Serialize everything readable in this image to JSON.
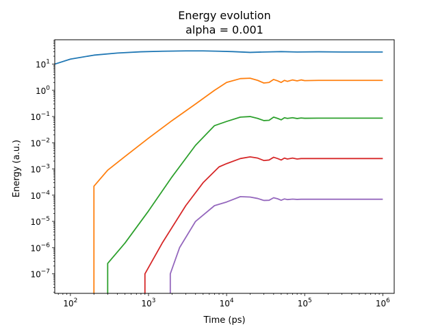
{
  "chart_data": {
    "type": "line",
    "title": "Energy evolution",
    "subtitle": "alpha = 0.001",
    "xlabel": "Time (ps)",
    "ylabel": "Energy (a.u.)",
    "xscale": "log",
    "yscale": "log",
    "xlim": [
      63,
      1400000
    ],
    "ylim": [
      1.8e-08,
      85
    ],
    "grid": false,
    "legend": "none",
    "x_ticks": [
      {
        "value": 100,
        "label": "10",
        "exp": "2"
      },
      {
        "value": 1000,
        "label": "10",
        "exp": "3"
      },
      {
        "value": 10000,
        "label": "10",
        "exp": "4"
      },
      {
        "value": 100000,
        "label": "10",
        "exp": "5"
      },
      {
        "value": 1000000,
        "label": "10",
        "exp": "6"
      }
    ],
    "y_ticks": [
      {
        "value": 1e-07,
        "label": "10",
        "exp": "−7"
      },
      {
        "value": 1e-06,
        "label": "10",
        "exp": "−6"
      },
      {
        "value": 1e-05,
        "label": "10",
        "exp": "−5"
      },
      {
        "value": 0.0001,
        "label": "10",
        "exp": "−4"
      },
      {
        "value": 0.001,
        "label": "10",
        "exp": "−3"
      },
      {
        "value": 0.01,
        "label": "10",
        "exp": "−2"
      },
      {
        "value": 0.1,
        "label": "10",
        "exp": "−1"
      },
      {
        "value": 1,
        "label": "10",
        "exp": "0"
      },
      {
        "value": 10,
        "label": "10",
        "exp": "1"
      }
    ],
    "series": [
      {
        "color": "#1f77b4",
        "x": [
          63,
          100,
          200,
          400,
          800,
          1500,
          3000,
          5000,
          8000,
          12000,
          20000,
          30000,
          50000,
          80000,
          150000,
          300000,
          600000,
          1000000
        ],
        "y": [
          10,
          15.5,
          22,
          26.5,
          29.5,
          31,
          32,
          32,
          31,
          30,
          28,
          29,
          30,
          29,
          29.5,
          29,
          29,
          29
        ]
      },
      {
        "color": "#ff7f0e",
        "x": [
          200,
          200,
          300,
          500,
          1000,
          2000,
          4000,
          7000,
          10000,
          15000,
          20000,
          25000,
          30000,
          35000,
          40000,
          45000,
          50000,
          55000,
          60000,
          70000,
          80000,
          90000,
          100000,
          150000,
          300000,
          1000000
        ],
        "y": [
          1.8e-08,
          0.00022,
          0.0009,
          0.003,
          0.015,
          0.07,
          0.3,
          1.0,
          2.0,
          2.8,
          2.9,
          2.4,
          1.9,
          2.0,
          2.6,
          2.3,
          2.0,
          2.4,
          2.2,
          2.5,
          2.3,
          2.5,
          2.35,
          2.4,
          2.4,
          2.4
        ]
      },
      {
        "color": "#2ca02c",
        "x": [
          300,
          300,
          500,
          1000,
          2000,
          4000,
          7000,
          10000,
          15000,
          20000,
          25000,
          30000,
          35000,
          40000,
          45000,
          50000,
          55000,
          60000,
          70000,
          80000,
          90000,
          100000,
          150000,
          300000,
          1000000
        ],
        "y": [
          1.8e-08,
          2.5e-07,
          1.5e-06,
          2.5e-05,
          0.0005,
          0.008,
          0.045,
          0.065,
          0.095,
          0.1,
          0.085,
          0.07,
          0.072,
          0.095,
          0.085,
          0.075,
          0.09,
          0.085,
          0.09,
          0.084,
          0.088,
          0.086,
          0.087,
          0.087,
          0.087
        ]
      },
      {
        "color": "#d62728",
        "x": [
          900,
          900,
          1500,
          3000,
          5000,
          8000,
          10000,
          15000,
          20000,
          25000,
          30000,
          35000,
          40000,
          45000,
          50000,
          55000,
          60000,
          70000,
          80000,
          90000,
          100000,
          150000,
          300000,
          1000000
        ],
        "y": [
          1.8e-08,
          1e-07,
          1.5e-06,
          4e-05,
          0.0003,
          0.0012,
          0.0016,
          0.0025,
          0.0029,
          0.0026,
          0.0021,
          0.0022,
          0.0028,
          0.0025,
          0.0022,
          0.0026,
          0.0024,
          0.0026,
          0.0024,
          0.0025,
          0.0025,
          0.0025,
          0.0025,
          0.0025
        ]
      },
      {
        "color": "#9467bd",
        "x": [
          1900,
          1900,
          2500,
          4000,
          7000,
          10000,
          15000,
          20000,
          25000,
          30000,
          35000,
          40000,
          45000,
          50000,
          55000,
          60000,
          70000,
          80000,
          90000,
          100000,
          150000,
          300000,
          1000000
        ],
        "y": [
          1.8e-08,
          1e-07,
          1e-06,
          1e-05,
          4e-05,
          5.5e-05,
          8.8e-05,
          8.5e-05,
          7.5e-05,
          6.3e-05,
          6.4e-05,
          8e-05,
          7.3e-05,
          6.4e-05,
          7.2e-05,
          6.8e-05,
          7.1e-05,
          6.9e-05,
          7e-05,
          7e-05,
          7e-05,
          7e-05,
          7e-05
        ]
      }
    ]
  }
}
